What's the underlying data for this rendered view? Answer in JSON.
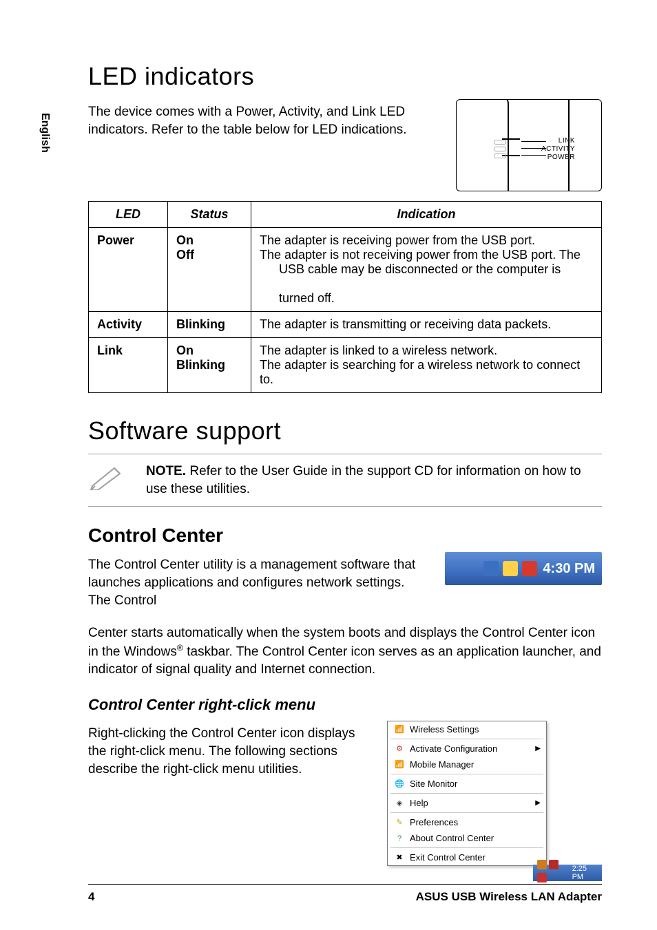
{
  "page_number": "4",
  "footer_title": "ASUS USB Wireless LAN Adapter",
  "side_tab": "English",
  "section_led": {
    "heading": "LED indicators",
    "intro": "The device comes with a Power, Activity, and Link LED indicators. Refer to the table below for LED indications.",
    "illustration_labels": {
      "link": "LINK",
      "activity": "ACTIVITY",
      "power": "POWER"
    },
    "table": {
      "headers": {
        "led": "LED",
        "status": "Status",
        "indication": "Indication"
      },
      "rows": [
        {
          "led": "Power",
          "status_lines": [
            "On",
            "Off"
          ],
          "indication_lines": [
            "The adapter is receiving power from the USB port.",
            "The adapter is not receiving power from the USB port. The",
            "USB cable may be disconnected or the computer is",
            "turned off."
          ],
          "indent_from_index": 2
        },
        {
          "led": "Activity",
          "status_lines": [
            "Blinking"
          ],
          "indication_lines": [
            "The adapter is transmitting or receiving data packets."
          ]
        },
        {
          "led": "Link",
          "status_lines": [
            "On",
            "Blinking"
          ],
          "indication_lines": [
            "The adapter is linked to a wireless network.",
            "The adapter is searching for a wireless network to connect to."
          ]
        }
      ]
    }
  },
  "section_software": {
    "heading": "Software support",
    "note_label": "NOTE.",
    "note_text": " Refer to the User Guide in the support CD for information on how to use these utilities."
  },
  "section_cc": {
    "heading": "Control Center",
    "para1": "The Control Center utility is a management software that launches applications and configures network settings. The Control",
    "para2_pre": "Center starts automatically when the system boots and displays the Control Center icon in the Windows",
    "reg_mark": "®",
    "para2_post": " taskbar. The Control Center icon serves as an application launcher, and indicator of signal quality and Internet connection.",
    "tray": {
      "time": "4:30 PM",
      "icons": [
        {
          "name": "monitor-icon",
          "bg": "#3b6fbf"
        },
        {
          "name": "signal-icon",
          "bg": "#ffd24a"
        },
        {
          "name": "blocked-icon",
          "bg": "#d63a2e"
        }
      ],
      "bg_gradient": [
        "#5d8ed6",
        "#2c57a0"
      ]
    }
  },
  "section_rc": {
    "heading": "Control Center right-click menu",
    "para": "Right-clicking the Control Center icon displays the right-click menu. The following sections describe the right-click menu utilities.",
    "menu": {
      "items": [
        {
          "icon": "antenna-icon",
          "icon_color": "#2f6db3",
          "label": "Wireless Settings",
          "arrow": false,
          "sep_after": true
        },
        {
          "icon": "gear-icon",
          "icon_color": "#c33",
          "label": "Activate Configuration",
          "arrow": true,
          "sep_after": false
        },
        {
          "icon": "antenna-icon",
          "icon_color": "#2f6db3",
          "label": "Mobile Manager",
          "arrow": false,
          "sep_after": true
        },
        {
          "icon": "globe-icon",
          "icon_color": "#2a8f3a",
          "label": "Site Monitor",
          "arrow": false,
          "sep_after": true
        },
        {
          "icon": "help-icon",
          "icon_color": "#333",
          "label": "Help",
          "arrow": true,
          "sep_after": true
        },
        {
          "icon": "pref-icon",
          "icon_color": "#c9a400",
          "label": "Preferences",
          "arrow": false,
          "sep_after": false
        },
        {
          "icon": "question-icon",
          "icon_color": "#1a8f1a",
          "label": "About Control Center",
          "arrow": false,
          "sep_after": true
        },
        {
          "icon": "close-icon",
          "icon_color": "#000",
          "label": "Exit Control Center",
          "arrow": false,
          "sep_after": false
        }
      ],
      "mini_tray": {
        "time": "2:25 PM",
        "icons": [
          {
            "name": "a",
            "bg": "#d07a1e"
          },
          {
            "name": "b",
            "bg": "#b52b2b"
          },
          {
            "name": "c",
            "bg": "#c9302c"
          }
        ]
      }
    }
  }
}
